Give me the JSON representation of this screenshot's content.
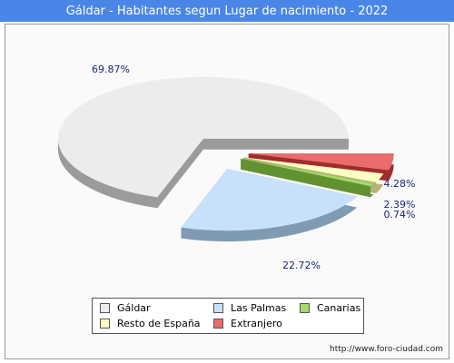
{
  "header": {
    "title": "Gáldar - Habitantes segun Lugar de nacimiento - 2022"
  },
  "chart_data": {
    "type": "pie",
    "title": "Gáldar - Habitantes segun Lugar de nacimiento - 2022",
    "categories": [
      "Gáldar",
      "Las Palmas",
      "Canarias",
      "Resto de España",
      "Extranjero"
    ],
    "values": [
      69.87,
      22.72,
      0.74,
      2.39,
      4.28
    ],
    "labels": [
      "69.87%",
      "22.72%",
      "0.74%",
      "2.39%",
      "4.28%"
    ],
    "colors": [
      "#ececec",
      "#c8e1fb",
      "#a3dc6a",
      "#ffffc4",
      "#ea6b6b"
    ],
    "side_colors": [
      "#9b9b9b",
      "#7f9ab3",
      "#62922f",
      "#b3b37a",
      "#a02c2c"
    ],
    "legend_position": "bottom"
  },
  "legend": {
    "items": [
      {
        "label": "Gáldar",
        "color": "#ececec"
      },
      {
        "label": "Las Palmas",
        "color": "#c8e1fb"
      },
      {
        "label": "Canarias",
        "color": "#a3dc6a"
      },
      {
        "label": "Resto de España",
        "color": "#ffffc4"
      },
      {
        "label": "Extranjero",
        "color": "#ea6b6b"
      }
    ]
  },
  "footer": {
    "credit": "http://www.foro-ciudad.com"
  }
}
